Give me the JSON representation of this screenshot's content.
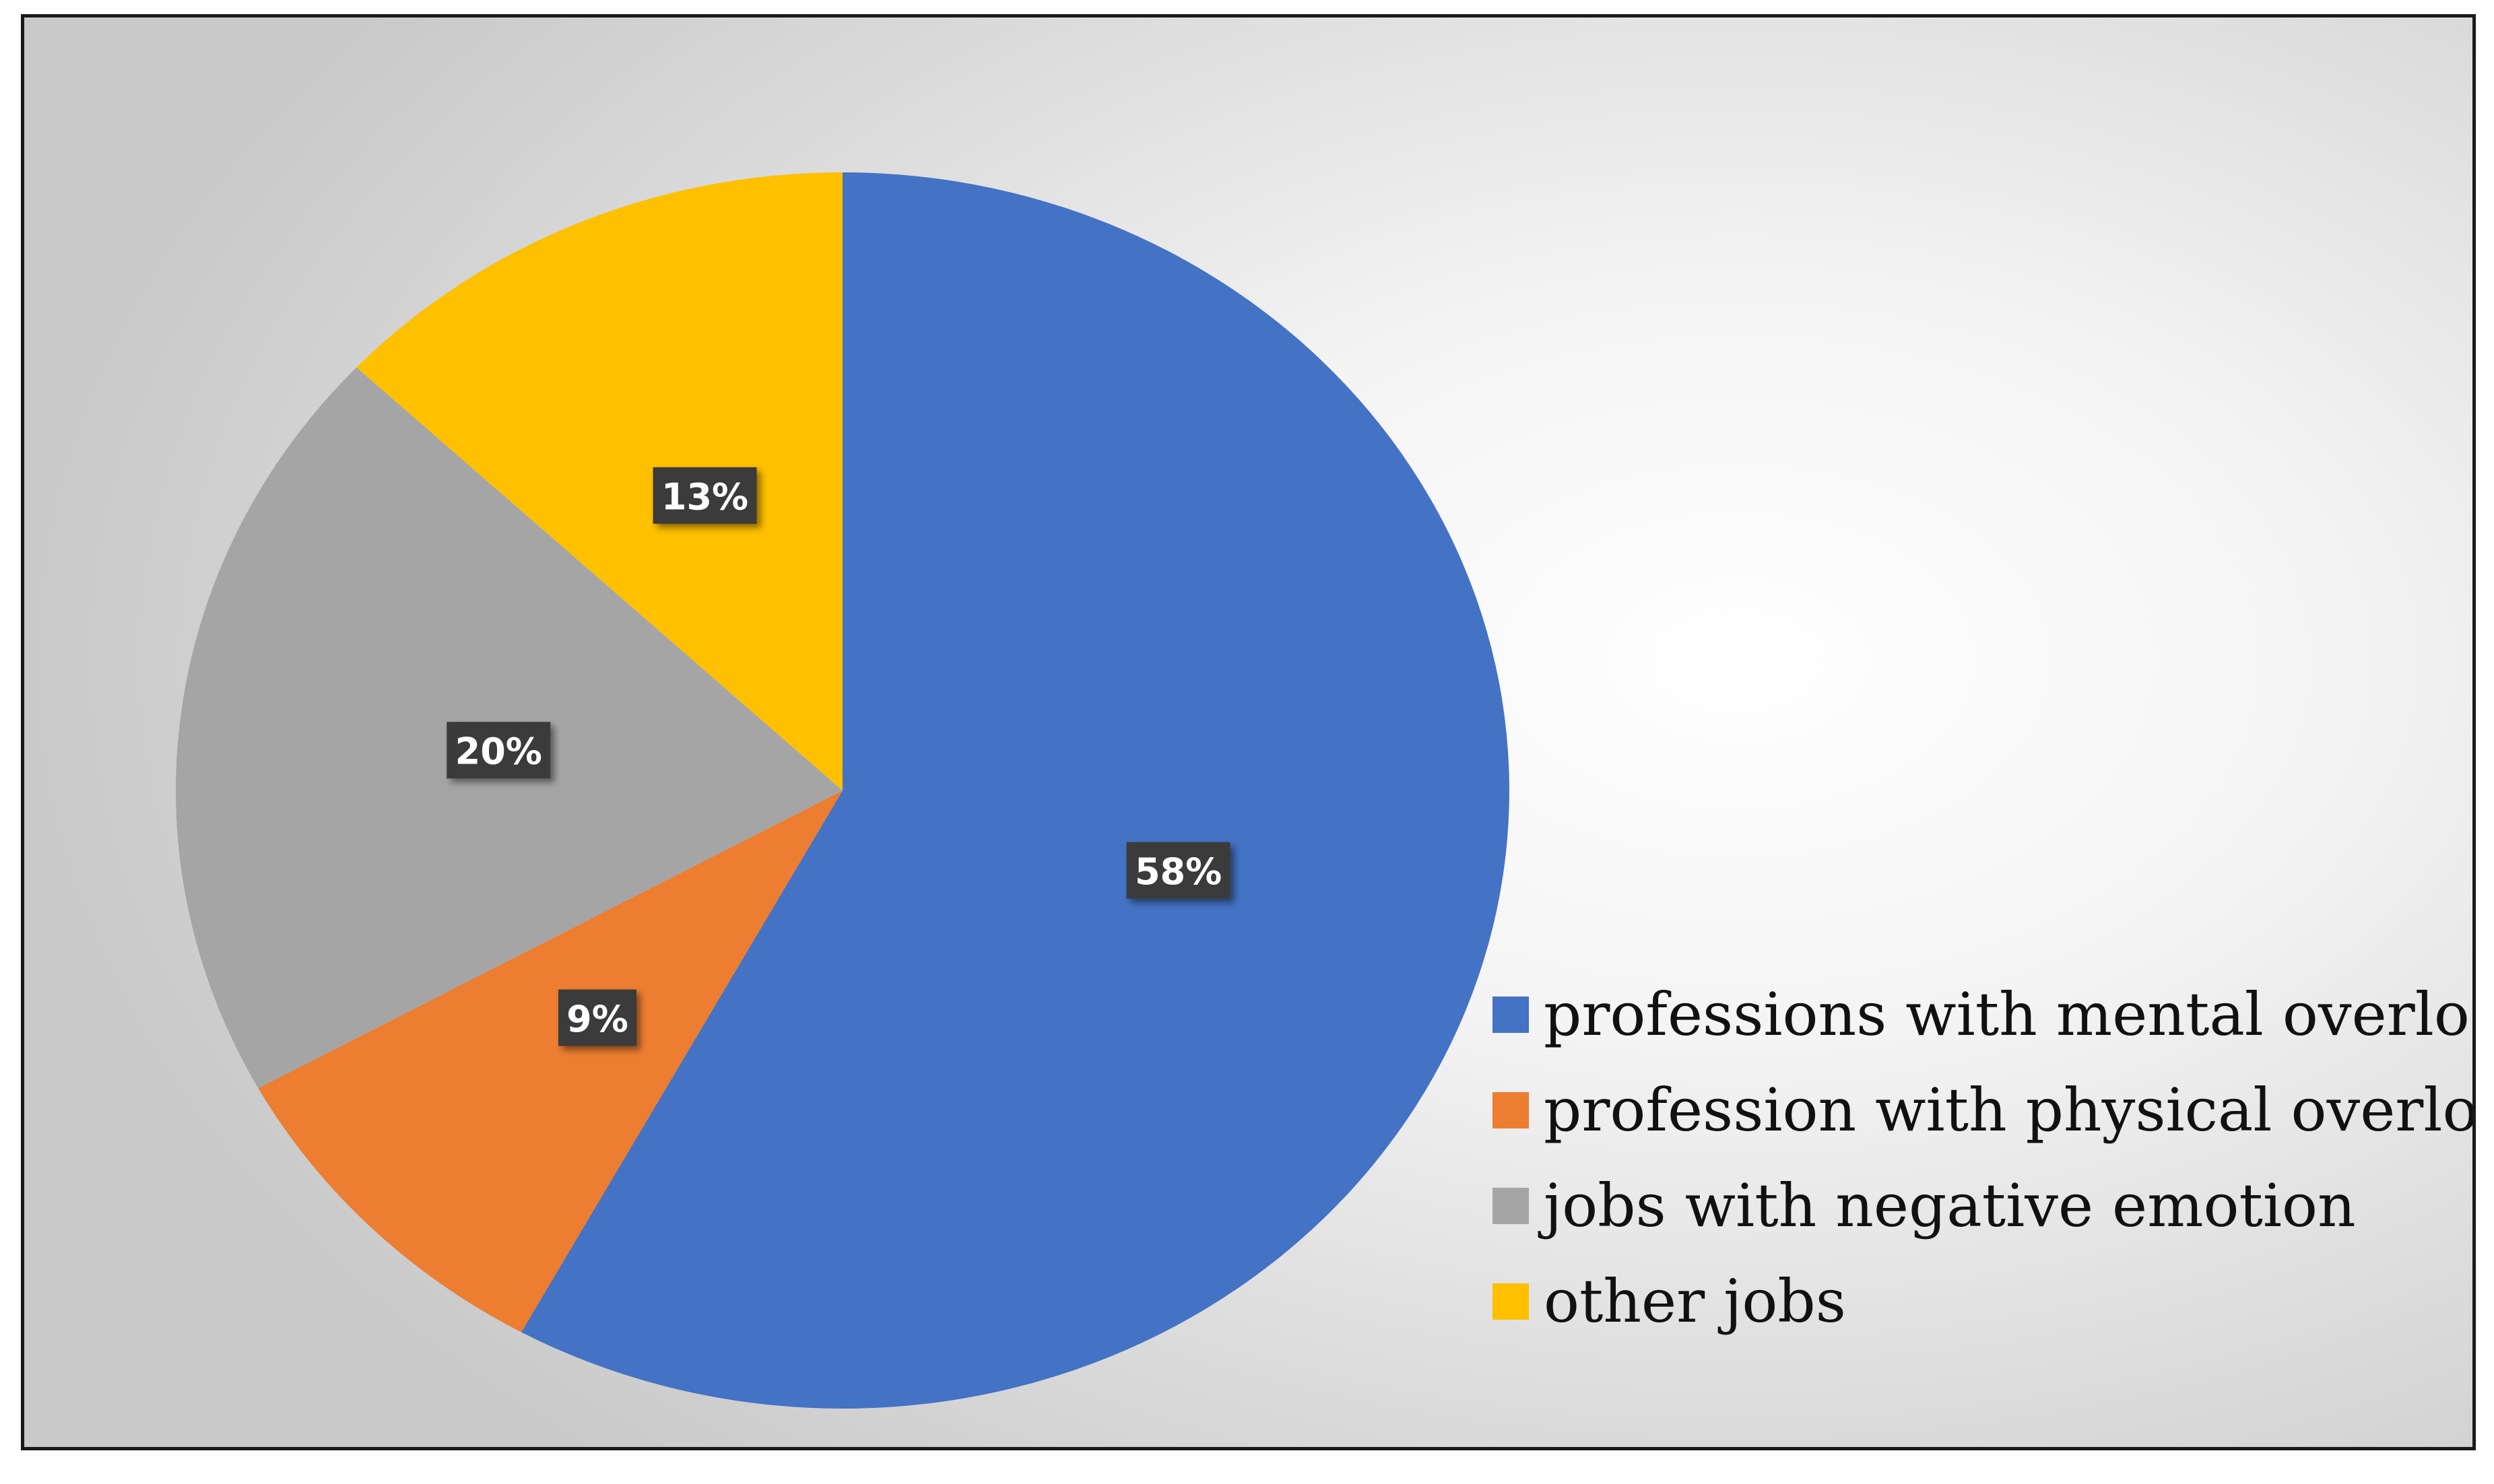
{
  "chart_data": {
    "type": "pie",
    "categories": [
      "professions with mental overload",
      "profession with physical overload",
      "jobs with negative emotion",
      "other jobs"
    ],
    "values": [
      58,
      9,
      20,
      13
    ],
    "value_labels": [
      "58%",
      "9%",
      "20%",
      "13%"
    ],
    "colors": [
      "#4472c4",
      "#ed7d31",
      "#a5a5a5",
      "#ffc000"
    ],
    "start_angle_deg": 0,
    "direction": "clockwise",
    "legend_position": "bottom-right",
    "data_label_style": "dark-box"
  }
}
